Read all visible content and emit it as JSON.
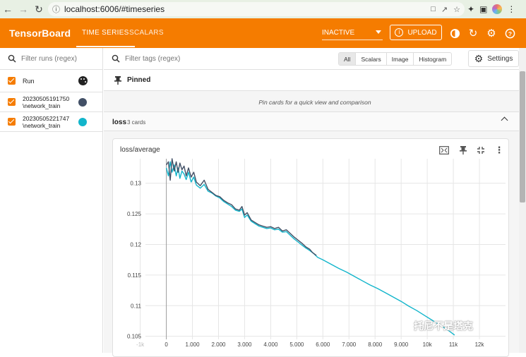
{
  "browser": {
    "url": "localhost:6006/#timeseries",
    "nav_icons": [
      "back-icon",
      "forward-icon",
      "reload-icon"
    ],
    "ext_icons": [
      "translate-icon",
      "share-icon",
      "star-icon",
      "extensions-icon",
      "sidepanel-icon",
      "profile-icon",
      "menu-icon"
    ]
  },
  "header": {
    "brand": "TensorBoard",
    "tabs": [
      {
        "label": "TIME SERIES",
        "active": true
      },
      {
        "label": "SCALARS",
        "active": false
      }
    ],
    "inactive_select": "INACTIVE",
    "upload_label": "UPLOAD",
    "icons": [
      "theme-icon",
      "refresh-icon",
      "settings-gear-icon",
      "help-icon"
    ],
    "color": "#f57c00"
  },
  "sidebar": {
    "filter_placeholder": "Filter runs (regex)",
    "run_header": "Run",
    "runs": [
      {
        "line1": "20230505191750",
        "line2": "\\network_train",
        "color": "#425066",
        "checked": true
      },
      {
        "line1": "20230505221747",
        "line2": "\\network_train",
        "color": "#12b5cb",
        "checked": true
      }
    ]
  },
  "main": {
    "tag_filter_placeholder": "Filter tags (regex)",
    "type_buttons": [
      {
        "label": "All",
        "active": true
      },
      {
        "label": "Scalars",
        "active": false
      },
      {
        "label": "Image",
        "active": false
      },
      {
        "label": "Histogram",
        "active": false
      }
    ],
    "settings_label": "Settings",
    "pinned_label": "Pinned",
    "pinned_hint": "Pin cards for a quick view and comparison",
    "group": {
      "name": "loss",
      "count": "3 cards"
    },
    "card": {
      "title": "loss/average"
    }
  },
  "watermark": "托尼不是塔克",
  "chart_data": {
    "type": "line",
    "title": "loss/average",
    "xlabel": "",
    "ylabel": "",
    "xlim": [
      -800,
      13000
    ],
    "ylim": [
      0.1045,
      0.134
    ],
    "x_ticks": [
      -1000,
      0,
      1000,
      2000,
      3000,
      4000,
      5000,
      6000,
      7000,
      8000,
      9000,
      10000,
      11000,
      12000
    ],
    "x_tick_labels": [
      "-1k",
      "0",
      "1,000",
      "2,000",
      "3,000",
      "4,000",
      "5,000",
      "6,000",
      "7,000",
      "8,000",
      "9,000",
      "10k",
      "11k",
      "12k"
    ],
    "y_ticks": [
      0.105,
      0.11,
      0.115,
      0.12,
      0.125,
      0.13
    ],
    "y_tick_labels": [
      "0.105",
      "0.11",
      "0.115",
      "0.12",
      "0.125",
      "0.13"
    ],
    "grid": true,
    "series": [
      {
        "color": "#425066",
        "x": [
          0,
          80,
          150,
          220,
          300,
          380,
          450,
          520,
          600,
          680,
          760,
          850,
          950,
          1050,
          1150,
          1300,
          1450,
          1600,
          1750,
          1900,
          2050,
          2200,
          2350,
          2500,
          2650,
          2800,
          2900,
          3000,
          3100,
          3250,
          3400,
          3550,
          3700,
          3850,
          4000,
          4150,
          4300,
          4450,
          4600,
          4750,
          4900,
          5050,
          5200,
          5350,
          5500,
          5600,
          5750
        ],
        "y": [
          0.133,
          0.1335,
          0.1305,
          0.134,
          0.132,
          0.1335,
          0.1318,
          0.1333,
          0.1322,
          0.1328,
          0.1312,
          0.1325,
          0.131,
          0.1318,
          0.1302,
          0.1296,
          0.1305,
          0.129,
          0.1285,
          0.128,
          0.1278,
          0.1272,
          0.1268,
          0.1265,
          0.1258,
          0.1256,
          0.1262,
          0.1248,
          0.1252,
          0.124,
          0.1236,
          0.1232,
          0.123,
          0.1228,
          0.1229,
          0.1226,
          0.1228,
          0.1222,
          0.1224,
          0.1218,
          0.1212,
          0.1207,
          0.1202,
          0.1196,
          0.1192,
          0.1187,
          0.1182
        ]
      },
      {
        "color": "#12b5cb",
        "x": [
          0,
          80,
          150,
          220,
          300,
          380,
          450,
          520,
          600,
          680,
          760,
          850,
          950,
          1050,
          1150,
          1300,
          1450,
          1600,
          1750,
          1900,
          2050,
          2200,
          2350,
          2500,
          2650,
          2800,
          2900,
          3000,
          3100,
          3250,
          3400,
          3550,
          3700,
          3850,
          4000,
          4150,
          4300,
          4450,
          4600,
          4750,
          4900,
          5050,
          5200,
          5350,
          5500,
          5650,
          5800,
          6000,
          6300,
          6600,
          6900,
          7200,
          7500,
          7800,
          8100,
          8400,
          8700,
          9000,
          9300,
          9600,
          9900,
          10200,
          10500,
          10800,
          11050
        ],
        "y": [
          0.1325,
          0.1312,
          0.1335,
          0.1318,
          0.133,
          0.1312,
          0.1325,
          0.1308,
          0.132,
          0.1315,
          0.1306,
          0.1318,
          0.1302,
          0.131,
          0.1297,
          0.1292,
          0.1298,
          0.1287,
          0.1284,
          0.1279,
          0.1276,
          0.127,
          0.1266,
          0.1262,
          0.1256,
          0.1254,
          0.1258,
          0.1244,
          0.1248,
          0.1238,
          0.1234,
          0.123,
          0.1228,
          0.1226,
          0.1227,
          0.1224,
          0.1225,
          0.122,
          0.1221,
          0.1215,
          0.1209,
          0.1204,
          0.1199,
          0.1194,
          0.119,
          0.1185,
          0.1179,
          0.1175,
          0.1168,
          0.1161,
          0.1155,
          0.1148,
          0.1141,
          0.1134,
          0.1128,
          0.1121,
          0.1114,
          0.1107,
          0.1099,
          0.1092,
          0.1084,
          0.1076,
          0.1068,
          0.106,
          0.1052
        ]
      }
    ]
  }
}
